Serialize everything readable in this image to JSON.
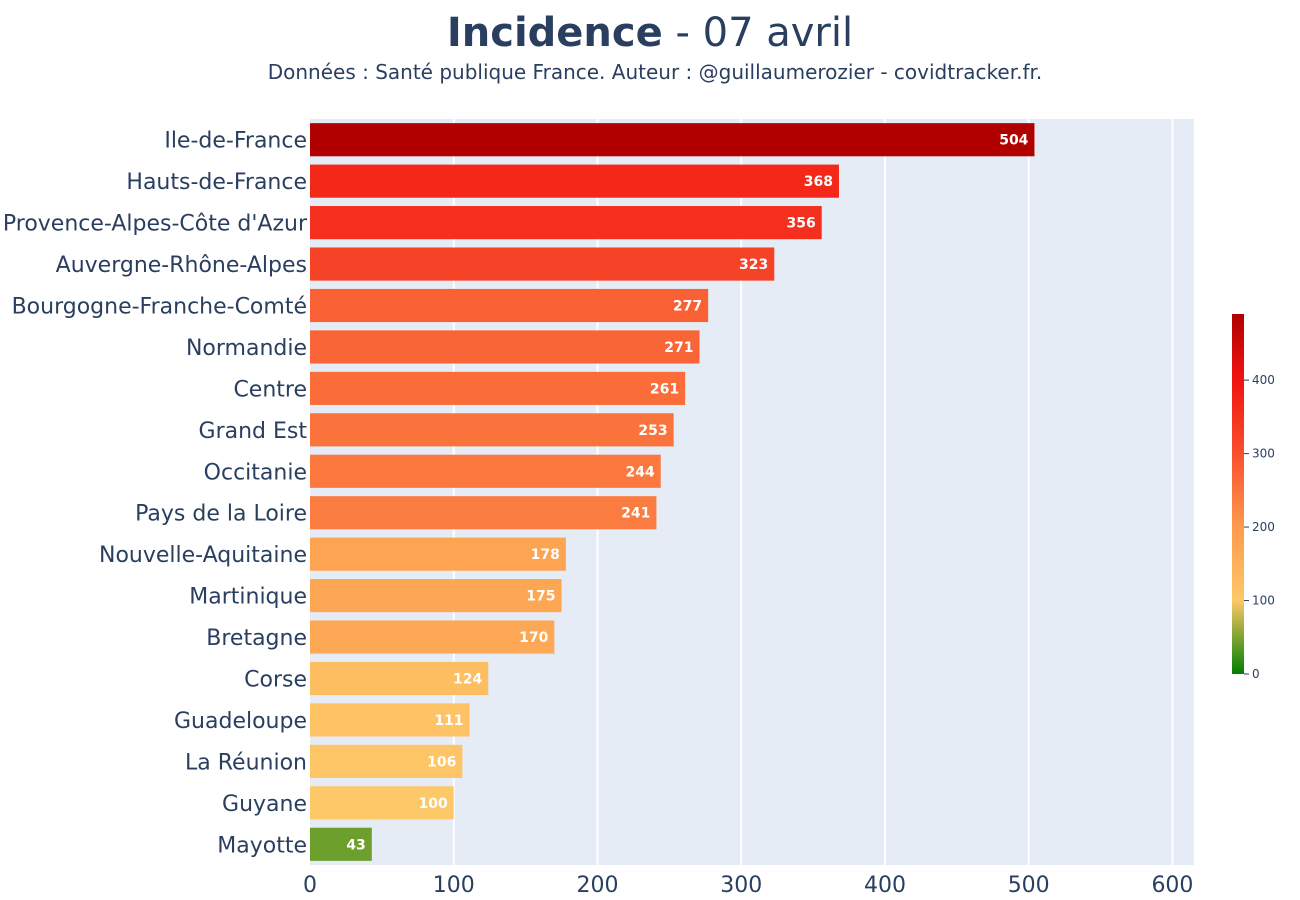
{
  "chart_data": {
    "type": "bar",
    "orientation": "horizontal",
    "title_bold": "Incidence",
    "title_rest": " - 07 avril",
    "subtitle": "Données : Santé publique France. Auteur : @guillaumerozier - covidtracker.fr.",
    "categories": [
      "Ile-de-France",
      "Hauts-de-France",
      "Provence-Alpes-Côte d'Azur",
      "Auvergne-Rhône-Alpes",
      "Bourgogne-Franche-Comté",
      "Normandie",
      "Centre",
      "Grand Est",
      "Occitanie",
      "Pays de la Loire",
      "Nouvelle-Aquitaine",
      "Martinique",
      "Bretagne",
      "Corse",
      "Guadeloupe",
      "La Réunion",
      "Guyane",
      "Mayotte"
    ],
    "values": [
      504,
      368,
      356,
      323,
      277,
      271,
      261,
      253,
      244,
      241,
      178,
      175,
      170,
      124,
      111,
      106,
      100,
      43
    ],
    "xlim": [
      0,
      615
    ],
    "xticks": [
      0,
      100,
      200,
      300,
      400,
      500,
      600
    ],
    "grid": true,
    "colorscale": {
      "stops": [
        [
          0,
          "#008000"
        ],
        [
          100,
          "#fdc867"
        ],
        [
          200,
          "#fd9a4d"
        ],
        [
          300,
          "#f8502d"
        ],
        [
          400,
          "#f01510"
        ],
        [
          490,
          "#b10000"
        ]
      ],
      "range": [
        0,
        490
      ],
      "ticks": [
        0,
        100,
        200,
        300,
        400
      ],
      "position": "right"
    },
    "plot_background": "#e5ecf6",
    "text_color": "#2a3f5f"
  }
}
